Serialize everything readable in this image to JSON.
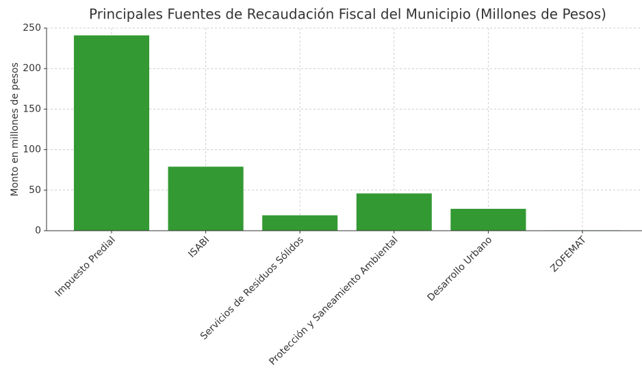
{
  "chart_data": {
    "type": "bar",
    "title": "Principales Fuentes de Recaudación Fiscal del Municipio (Millones de Pesos)",
    "y_label": "Monto en millones de pesos",
    "categories": [
      "Impuesto Predial",
      "ISABI",
      "Servicios de Residuos Sólidos",
      "Protección y Saneamiento Ambiental",
      "Desarrollo Urbano",
      "ZOFEMAT"
    ],
    "values": [
      241,
      79,
      19,
      46,
      27,
      0.5
    ],
    "color": "#339933",
    "ylim": [
      0,
      250
    ],
    "yticks": [
      0,
      50,
      100,
      150,
      200,
      250
    ],
    "grid": true
  }
}
